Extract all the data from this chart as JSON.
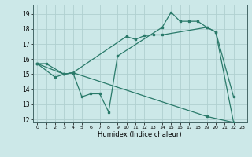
{
  "title": "",
  "xlabel": "Humidex (Indice chaleur)",
  "bg_color": "#cce8e8",
  "grid_color": "#b0d0d0",
  "line_color": "#2a7a6a",
  "xlim": [
    -0.5,
    23.5
  ],
  "ylim": [
    11.8,
    19.6
  ],
  "yticks": [
    12,
    13,
    14,
    15,
    16,
    17,
    18,
    19
  ],
  "xticks": [
    0,
    1,
    2,
    3,
    4,
    5,
    6,
    7,
    8,
    9,
    10,
    11,
    12,
    13,
    14,
    15,
    16,
    17,
    18,
    19,
    20,
    21,
    22,
    23
  ],
  "curve1_x": [
    0,
    1,
    3,
    4,
    10,
    11,
    12,
    13,
    14,
    19,
    20,
    22
  ],
  "curve1_y": [
    15.7,
    15.7,
    15.0,
    15.1,
    17.5,
    17.3,
    17.55,
    17.6,
    17.6,
    18.1,
    17.8,
    11.8
  ],
  "curve2_x": [
    0,
    2,
    3,
    4,
    5,
    6,
    7,
    8,
    9,
    14,
    15,
    16,
    17,
    18,
    19,
    20,
    22
  ],
  "curve2_y": [
    15.7,
    14.8,
    15.0,
    15.1,
    13.5,
    13.7,
    13.7,
    12.5,
    16.2,
    18.1,
    19.1,
    18.5,
    18.5,
    18.5,
    18.1,
    17.8,
    13.5
  ],
  "curve3_x": [
    0,
    3,
    4,
    19,
    22,
    23
  ],
  "curve3_y": [
    15.7,
    15.0,
    15.1,
    12.2,
    11.8,
    11.7
  ],
  "figsize": [
    3.2,
    2.0
  ],
  "dpi": 100
}
